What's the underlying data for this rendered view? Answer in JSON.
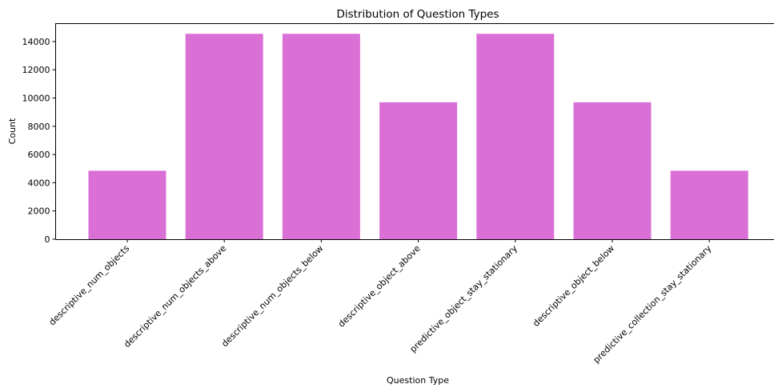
{
  "chart_data": {
    "type": "bar",
    "title": "Distribution of Question Types",
    "xlabel": "Question Type",
    "ylabel": "Count",
    "categories": [
      "descriptive_num_objects",
      "descriptive_num_objects_above",
      "descriptive_num_objects_below",
      "descriptive_object_above",
      "predictive_object_stay_stationary",
      "descriptive_object_below",
      "predictive_collection_stay_stationary"
    ],
    "values": [
      4850,
      14550,
      14550,
      9700,
      14550,
      9700,
      4850
    ],
    "yticks": [
      0,
      2000,
      4000,
      6000,
      8000,
      10000,
      12000,
      14000
    ],
    "ylim": [
      0,
      15300
    ],
    "bar_color": "#da70d6",
    "grid": false,
    "legend": "none"
  }
}
